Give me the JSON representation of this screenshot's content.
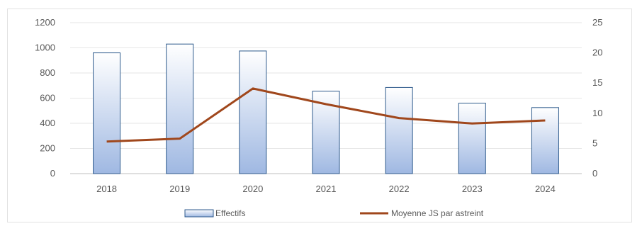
{
  "chart_data": {
    "type": "bar",
    "categories": [
      "2018",
      "2019",
      "2020",
      "2021",
      "2022",
      "2023",
      "2024"
    ],
    "series": [
      {
        "name": "Effectifs",
        "type": "bar",
        "axis": "left",
        "values": [
          960,
          1030,
          975,
          655,
          685,
          560,
          525
        ],
        "color": "#9fb8e2"
      },
      {
        "name": "Moyenne JS par astreint",
        "type": "line",
        "axis": "right",
        "values": [
          5.3,
          5.8,
          14.1,
          11.5,
          9.2,
          8.3,
          8.8
        ],
        "color": "#a0471c"
      }
    ],
    "y_left": {
      "ylim": [
        0,
        1200
      ],
      "ticks": [
        0,
        200,
        400,
        600,
        800,
        1000,
        1200
      ]
    },
    "y_right": {
      "ylim": [
        0,
        25
      ],
      "ticks": [
        0,
        5,
        10,
        15,
        20,
        25
      ]
    },
    "grid": true,
    "legend_position": "bottom"
  }
}
